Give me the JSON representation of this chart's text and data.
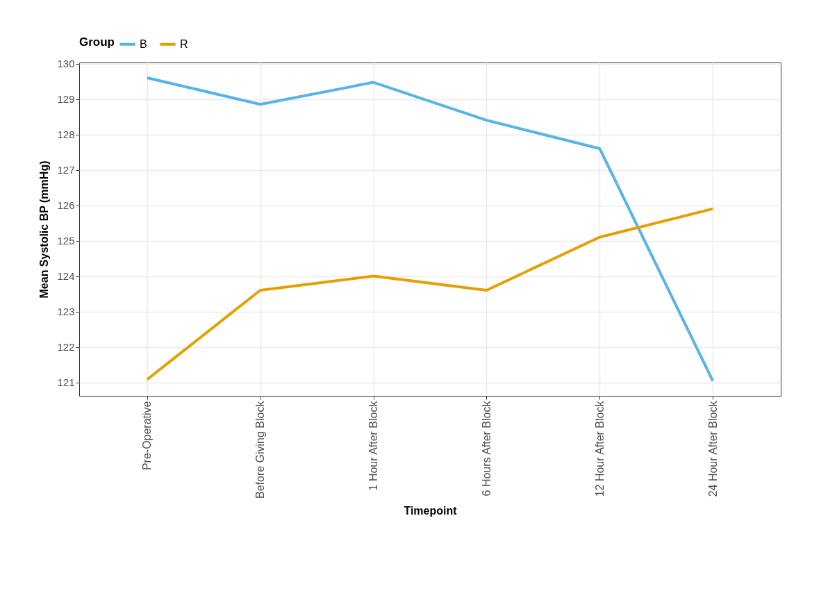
{
  "chart_data": {
    "type": "line",
    "xlabel": "Timepoint",
    "ylabel": "Mean Systolic BP (mmHg)",
    "legend_title": "Group",
    "legend": "top",
    "grid": true,
    "categories": [
      "Pre-Operative",
      "Before Giving Block",
      "1 Hour After Block",
      "6 Hours After Block",
      "12 Hour After Block",
      "24 Hour After Block"
    ],
    "ylim": [
      120.62,
      130.03
    ],
    "yticks": [
      121,
      122,
      123,
      124,
      125,
      126,
      127,
      128,
      129,
      130
    ],
    "series": [
      {
        "name": "B",
        "color": "#56b4e9",
        "values": [
          129.6,
          128.85,
          129.47,
          128.4,
          127.6,
          121.04
        ]
      },
      {
        "name": "R",
        "color": "#e69f00",
        "values": [
          121.08,
          123.6,
          124.0,
          123.6,
          125.1,
          125.9
        ]
      }
    ]
  }
}
